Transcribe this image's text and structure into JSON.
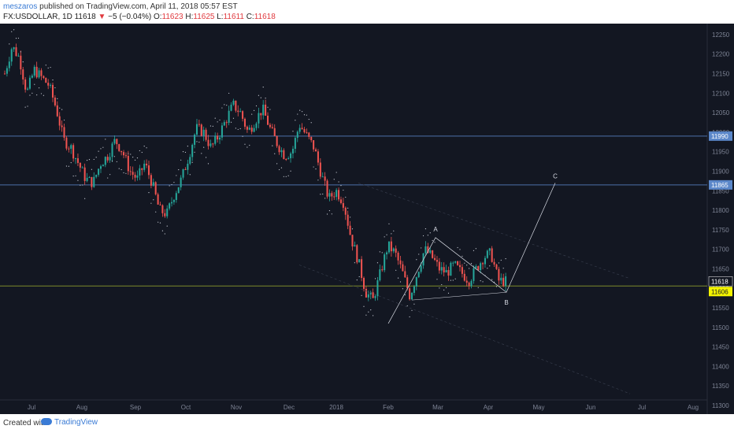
{
  "header": {
    "author": "meszaros",
    "published_text": "published on TradingView.com, April 11, 2018 05:57 EST",
    "symbol": "FX:USDOLLAR, 1D",
    "last": "11618",
    "change": "−5 (−0.04%)",
    "o_label": "O:",
    "o_value": "11623",
    "h_label": "H:",
    "h_value": "11625",
    "l_label": "L:",
    "l_value": "11611",
    "c_label": "C:",
    "c_value": "11618"
  },
  "footer": {
    "created_with": "Created with",
    "brand": "TradingView"
  },
  "colors": {
    "background": "#131722",
    "up": "#26a69a",
    "down": "#ef5350",
    "level_line": "#4c6fa8",
    "support_line": "#7d8a2a",
    "last_price_tag": "#131722",
    "support_tag": "#f4f400",
    "level_tag": "#5b87c9"
  },
  "chart_data": {
    "type": "candlestick",
    "symbol": "FX:USDOLLAR",
    "interval": "1D",
    "x_ticks": [
      "Jul",
      "Aug",
      "Sep",
      "Oct",
      "Nov",
      "Dec",
      "2018",
      "Feb",
      "Mar",
      "Apr",
      "May",
      "Jun",
      "Jul",
      "Aug"
    ],
    "y_ticks": [
      12250,
      12200,
      12150,
      12100,
      12050,
      12000,
      11950,
      11900,
      11850,
      11800,
      11750,
      11700,
      11650,
      11600,
      11550,
      11500,
      11450,
      11400,
      11350,
      11300
    ],
    "ylim": [
      11290,
      12270
    ],
    "close_path": [
      12150,
      12220,
      12190,
      12100,
      12160,
      12140,
      12120,
      12060,
      11980,
      11960,
      11920,
      11880,
      11870,
      11920,
      11940,
      11980,
      11950,
      11900,
      11880,
      11920,
      11870,
      11800,
      11790,
      11840,
      11880,
      11940,
      12010,
      12000,
      11960,
      11990,
      12030,
      12070,
      12050,
      12000,
      12030,
      12060,
      12010,
      11970,
      11940,
      11950,
      12020,
      11990,
      11960,
      11890,
      11830,
      11850,
      11820,
      11730,
      11670,
      11590,
      11570,
      11640,
      11710,
      11690,
      11640,
      11580,
      11640,
      11700,
      11680,
      11650,
      11640,
      11660,
      11640,
      11620,
      11650,
      11680,
      11690,
      11620,
      11618
    ],
    "horizontal_levels": [
      {
        "value": 11990,
        "label": "11990"
      },
      {
        "value": 11865,
        "label": "11865"
      }
    ],
    "support_line": {
      "value": 11606,
      "label": "11606"
    },
    "last_price": {
      "value": 11618,
      "label": "11618"
    },
    "wave_points": [
      {
        "label": "A",
        "value": 11730
      },
      {
        "label": "B",
        "value": 11590
      },
      {
        "label": "C",
        "value": 11870
      }
    ]
  }
}
